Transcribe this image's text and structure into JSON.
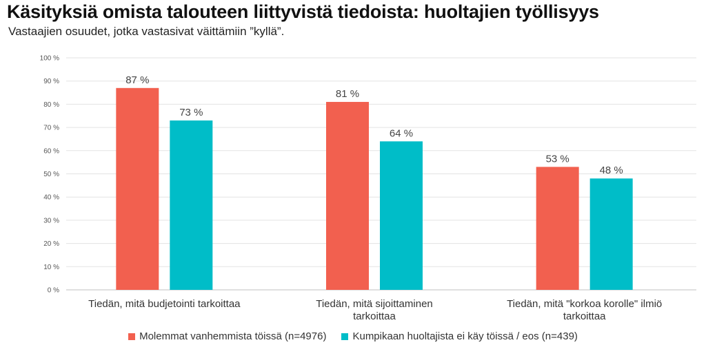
{
  "chart_data": {
    "type": "bar",
    "title": "Käsityksiä omista talouteen liittyvistä tiedoista: huoltajien työllisyys",
    "subtitle": "Vastaajien osuudet, jotka vastasivat väittämiin ”kyllä”.",
    "categories": [
      [
        "Tiedän, mitä budjetointi tarkoittaa"
      ],
      [
        "Tiedän, mitä sijoittaminen",
        "tarkoittaa"
      ],
      [
        "Tiedän, mitä \"korkoa korolle\" ilmiö",
        "tarkoittaa"
      ]
    ],
    "series": [
      {
        "name": "Molemmat vanhemmista töissä (n=4976)",
        "values": [
          87,
          81,
          53
        ],
        "color": "#F2604F"
      },
      {
        "name": "Kumpikaan huoltajista ei käy töissä / eos (n=439)",
        "values": [
          73,
          64,
          48
        ],
        "color": "#00BDC8"
      }
    ],
    "ylim": [
      0,
      100
    ],
    "yticks": [
      0,
      10,
      20,
      30,
      40,
      50,
      60,
      70,
      80,
      90,
      100
    ],
    "ytick_suffix": " %",
    "value_suffix": " %",
    "grid": true,
    "legend_position": "bottom"
  }
}
